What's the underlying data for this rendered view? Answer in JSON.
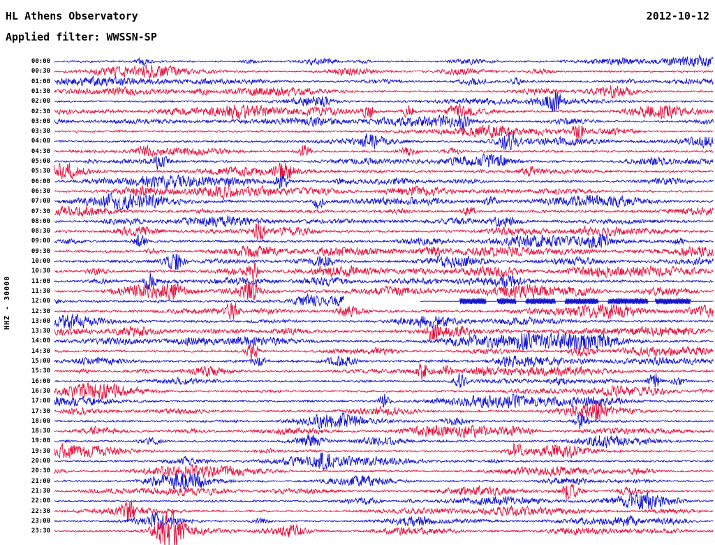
{
  "header": {
    "title": "HL Athens Observatory",
    "date": "2012-10-12",
    "filter_label": "Applied filter: WWSSN-SP"
  },
  "chart_data": {
    "type": "line",
    "title": "HL Athens Observatory",
    "subtitle": "Applied filter: WWSSN-SP",
    "date": "2012-10-12",
    "ylabel": "HHZ - 30000",
    "xlabel": "",
    "legend": "none",
    "grid": "off",
    "minutes_per_row": 30,
    "row_count": 48,
    "background": "#ffffff",
    "colors": {
      "blue": "#1414cc",
      "red": "#e01440"
    },
    "rows": [
      {
        "label": "00:00",
        "color": "blue"
      },
      {
        "label": "00:30",
        "color": "red"
      },
      {
        "label": "01:00",
        "color": "blue"
      },
      {
        "label": "01:30",
        "color": "red"
      },
      {
        "label": "02:00",
        "color": "blue"
      },
      {
        "label": "02:30",
        "color": "red"
      },
      {
        "label": "03:00",
        "color": "blue"
      },
      {
        "label": "03:30",
        "color": "red"
      },
      {
        "label": "04:00",
        "color": "blue"
      },
      {
        "label": "04:30",
        "color": "red"
      },
      {
        "label": "05:00",
        "color": "blue"
      },
      {
        "label": "05:30",
        "color": "red"
      },
      {
        "label": "06:00",
        "color": "blue"
      },
      {
        "label": "06:30",
        "color": "red"
      },
      {
        "label": "07:00",
        "color": "blue"
      },
      {
        "label": "07:30",
        "color": "red"
      },
      {
        "label": "08:00",
        "color": "blue"
      },
      {
        "label": "08:30",
        "color": "red"
      },
      {
        "label": "09:00",
        "color": "blue"
      },
      {
        "label": "09:30",
        "color": "red"
      },
      {
        "label": "10:00",
        "color": "blue"
      },
      {
        "label": "10:30",
        "color": "red"
      },
      {
        "label": "11:00",
        "color": "blue"
      },
      {
        "label": "11:30",
        "color": "red"
      },
      {
        "label": "12:00",
        "color": "blue"
      },
      {
        "label": "12:30",
        "color": "red"
      },
      {
        "label": "13:00",
        "color": "blue"
      },
      {
        "label": "13:30",
        "color": "red"
      },
      {
        "label": "14:00",
        "color": "blue"
      },
      {
        "label": "14:30",
        "color": "red"
      },
      {
        "label": "15:00",
        "color": "blue"
      },
      {
        "label": "15:30",
        "color": "red"
      },
      {
        "label": "16:00",
        "color": "blue"
      },
      {
        "label": "16:30",
        "color": "red"
      },
      {
        "label": "17:00",
        "color": "blue"
      },
      {
        "label": "17:30",
        "color": "red"
      },
      {
        "label": "18:00",
        "color": "blue"
      },
      {
        "label": "18:30",
        "color": "red"
      },
      {
        "label": "19:00",
        "color": "blue"
      },
      {
        "label": "19:30",
        "color": "red"
      },
      {
        "label": "20:00",
        "color": "blue"
      },
      {
        "label": "20:30",
        "color": "red"
      },
      {
        "label": "21:00",
        "color": "blue"
      },
      {
        "label": "21:30",
        "color": "red"
      },
      {
        "label": "22:00",
        "color": "blue"
      },
      {
        "label": "22:30",
        "color": "red"
      },
      {
        "label": "23:00",
        "color": "blue"
      },
      {
        "label": "23:30",
        "color": "red"
      }
    ],
    "events": [
      {
        "row": "02:00",
        "frac": 0.757,
        "amp": 9
      },
      {
        "row": "02:30",
        "frac": 0.477,
        "amp": 6
      },
      {
        "row": "02:30",
        "frac": 0.537,
        "amp": 5
      },
      {
        "row": "03:00",
        "frac": 0.62,
        "amp": 4.5
      },
      {
        "row": "03:30",
        "frac": 0.795,
        "amp": 6.5
      },
      {
        "row": "04:00",
        "frac": 0.69,
        "amp": 6
      },
      {
        "row": "04:30",
        "frac": 0.38,
        "amp": 5
      },
      {
        "row": "05:00",
        "frac": 0.161,
        "amp": 6
      },
      {
        "row": "05:30",
        "frac": 0.35,
        "amp": 5.5
      },
      {
        "row": "06:00",
        "frac": 0.345,
        "amp": 5
      },
      {
        "row": "07:00",
        "frac": 0.4,
        "amp": 5
      },
      {
        "row": "08:30",
        "frac": 0.31,
        "amp": 6
      },
      {
        "row": "09:00",
        "frac": 0.13,
        "amp": 5
      },
      {
        "row": "10:00",
        "frac": 0.185,
        "amp": 5.5
      },
      {
        "row": "10:30",
        "frac": 0.3,
        "amp": 6
      },
      {
        "row": "11:00",
        "frac": 0.145,
        "amp": 6
      },
      {
        "row": "11:30",
        "frac": 0.3,
        "amp": 7
      },
      {
        "row": "12:30",
        "frac": 0.27,
        "amp": 6
      },
      {
        "row": "13:30",
        "frac": 0.575,
        "amp": 5.5
      },
      {
        "row": "14:00",
        "frac": 0.715,
        "amp": 7
      },
      {
        "row": "14:30",
        "frac": 0.3,
        "amp": 6
      },
      {
        "row": "15:30",
        "frac": 0.56,
        "amp": 6
      },
      {
        "row": "16:00",
        "frac": 0.615,
        "amp": 6
      },
      {
        "row": "16:00",
        "frac": 0.91,
        "amp": 6
      },
      {
        "row": "17:00",
        "frac": 0.5,
        "amp": 5
      },
      {
        "row": "17:30",
        "frac": 0.825,
        "amp": 7
      },
      {
        "row": "18:00",
        "frac": 0.8,
        "amp": 6.5
      },
      {
        "row": "19:30",
        "frac": 0.7,
        "amp": 6
      },
      {
        "row": "20:00",
        "frac": 0.41,
        "amp": 6
      },
      {
        "row": "21:30",
        "frac": 0.78,
        "amp": 6
      },
      {
        "row": "22:30",
        "frac": 0.113,
        "amp": 8
      },
      {
        "row": "23:00",
        "frac": 0.155,
        "amp": 6
      },
      {
        "row": "23:30",
        "frac": 0.177,
        "amp": 18
      }
    ],
    "gap_row": {
      "label": "12:00",
      "segments": [
        {
          "from": 0.44,
          "to": 0.555,
          "mode": "none"
        },
        {
          "from": 0.555,
          "to": 0.615,
          "mode": "flat"
        },
        {
          "from": 0.615,
          "to": 0.655,
          "mode": "block"
        },
        {
          "from": 0.655,
          "to": 0.672,
          "mode": "flat"
        },
        {
          "from": 0.672,
          "to": 0.7,
          "mode": "block"
        },
        {
          "from": 0.7,
          "to": 0.715,
          "mode": "flat"
        },
        {
          "from": 0.715,
          "to": 0.76,
          "mode": "block"
        },
        {
          "from": 0.76,
          "to": 0.775,
          "mode": "flat"
        },
        {
          "from": 0.775,
          "to": 0.825,
          "mode": "block"
        },
        {
          "from": 0.825,
          "to": 0.84,
          "mode": "flat"
        },
        {
          "from": 0.84,
          "to": 0.9,
          "mode": "block"
        },
        {
          "from": 0.9,
          "to": 0.912,
          "mode": "flat"
        },
        {
          "from": 0.912,
          "to": 0.965,
          "mode": "block"
        },
        {
          "from": 0.965,
          "to": 1.0,
          "mode": "flat"
        }
      ]
    }
  }
}
